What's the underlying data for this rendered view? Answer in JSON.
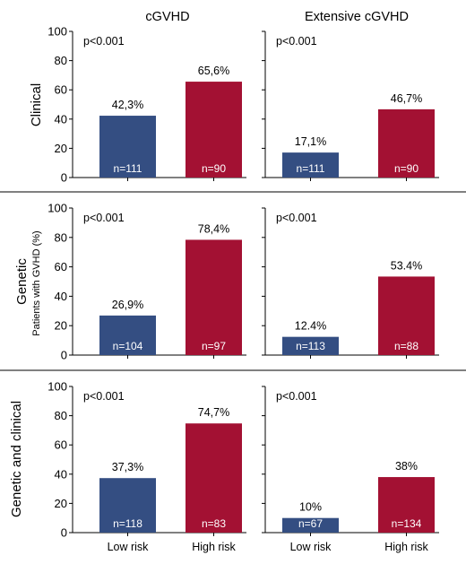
{
  "figure": {
    "column_titles": [
      "cGVHD",
      "Extensive cGVHD"
    ],
    "row_titles": [
      "Clinical",
      "Genetic",
      "Genetic and clinical"
    ],
    "y_axis_label": "Patients with GVHD (%)",
    "colors": {
      "low_risk": "#344e82",
      "high_risk": "#a31133",
      "axis": "#000000",
      "divider": "#000000"
    }
  },
  "chart_data": [
    {
      "type": "bar",
      "row": "Clinical",
      "column": "cGVHD",
      "categories": [
        "Low risk",
        "High risk"
      ],
      "values": [
        42.3,
        65.6
      ],
      "value_labels": [
        "42,3%",
        "65,6%"
      ],
      "n_labels": [
        "n=111",
        "n=90"
      ],
      "annotation": "p<0.001",
      "ylim": [
        0,
        100
      ],
      "yticks": [
        "0",
        "20",
        "40",
        "60",
        "80",
        "100"
      ],
      "show_xticklabels": false
    },
    {
      "type": "bar",
      "row": "Clinical",
      "column": "Extensive cGVHD",
      "categories": [
        "Low risk",
        "High risk"
      ],
      "values": [
        17.1,
        46.7
      ],
      "value_labels": [
        "17,1%",
        "46,7%"
      ],
      "n_labels": [
        "n=111",
        "n=90"
      ],
      "annotation": "p<0.001",
      "ylim": [
        0,
        100
      ],
      "yticks": [],
      "show_xticklabels": false
    },
    {
      "type": "bar",
      "row": "Genetic",
      "column": "cGVHD",
      "categories": [
        "Low risk",
        "High risk"
      ],
      "values": [
        26.9,
        78.4
      ],
      "value_labels": [
        "26,9%",
        "78,4%"
      ],
      "n_labels": [
        "n=104",
        "n=97"
      ],
      "annotation": "p<0.001",
      "ylim": [
        0,
        100
      ],
      "yticks": [
        "0",
        "20",
        "40",
        "60",
        "80",
        "100"
      ],
      "show_xticklabels": false
    },
    {
      "type": "bar",
      "row": "Genetic",
      "column": "Extensive cGVHD",
      "categories": [
        "Low risk",
        "High risk"
      ],
      "values": [
        12.4,
        53.4
      ],
      "value_labels": [
        "12.4%",
        "53.4%"
      ],
      "n_labels": [
        "n=113",
        "n=88"
      ],
      "annotation": "p<0.001",
      "ylim": [
        0,
        100
      ],
      "yticks": [],
      "show_xticklabels": false
    },
    {
      "type": "bar",
      "row": "Genetic and clinical",
      "column": "cGVHD",
      "categories": [
        "Low risk",
        "High risk"
      ],
      "values": [
        37.3,
        74.7
      ],
      "value_labels": [
        "37,3%",
        "74,7%"
      ],
      "n_labels": [
        "n=118",
        "n=83"
      ],
      "annotation": "p<0.001",
      "ylim": [
        0,
        100
      ],
      "yticks": [
        "0",
        "20",
        "40",
        "60",
        "80",
        "100"
      ],
      "show_xticklabels": true
    },
    {
      "type": "bar",
      "row": "Genetic and clinical",
      "column": "Extensive cGVHD",
      "categories": [
        "Low risk",
        "High risk"
      ],
      "values": [
        10,
        38
      ],
      "value_labels": [
        "10%",
        "38%"
      ],
      "n_labels": [
        "n=67",
        "n=134"
      ],
      "annotation": "p<0.001",
      "ylim": [
        0,
        100
      ],
      "yticks": [],
      "show_xticklabels": true
    }
  ]
}
